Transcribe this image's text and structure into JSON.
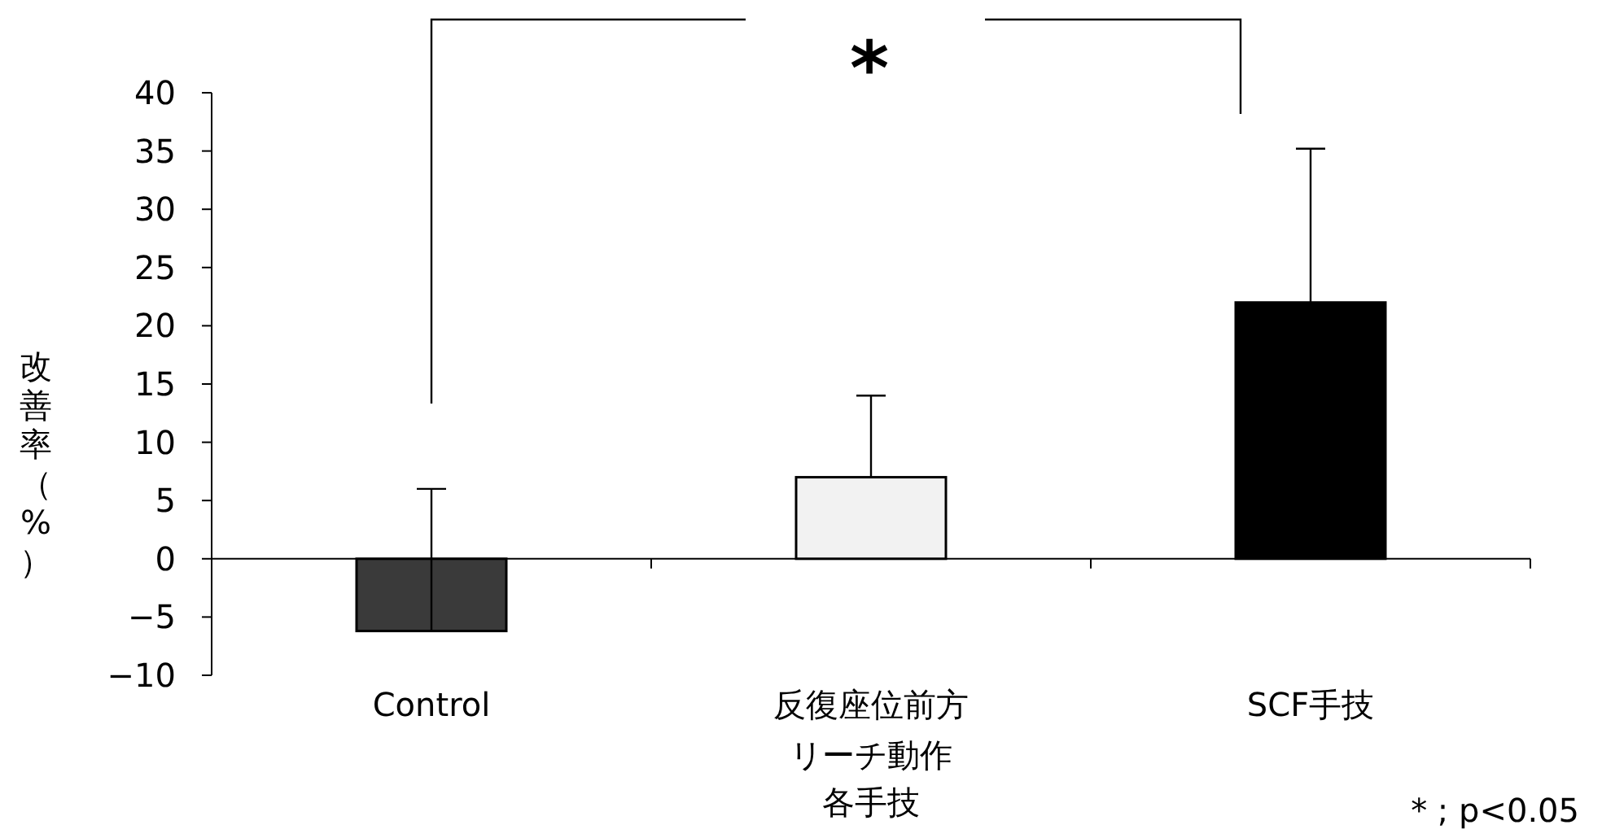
{
  "chart_data": {
    "type": "bar",
    "xlabel": "各手技",
    "ylabel": "改善率（%）",
    "categories": [
      "Control",
      "反復座位前方リーチ動作",
      "SCF手技"
    ],
    "values": [
      -6.2,
      7,
      22
    ],
    "colors": [
      "#3a3a3a",
      "#f2f2f2",
      "#000000"
    ],
    "errors": [
      [
        -6.2,
        6
      ],
      [
        7,
        14
      ],
      [
        22,
        35.2
      ]
    ],
    "ylim": [
      -10,
      40
    ],
    "yticks": [
      -10,
      -5,
      0,
      5,
      10,
      15,
      20,
      25,
      30,
      35,
      40
    ],
    "annotations": [
      "*",
      "* ; p<0.05"
    ]
  }
}
